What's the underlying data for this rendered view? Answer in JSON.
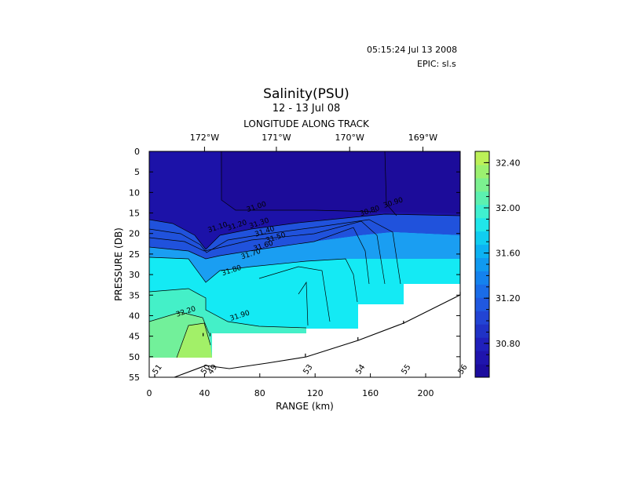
{
  "header": {
    "timestamp": "05:15:24 Jul 13 2008",
    "epic": "EPIC:  sl.s"
  },
  "chart_data": {
    "type": "heatmap",
    "title": "Salinity(PSU)",
    "subtitle": "12 - 13 Jul 08",
    "top_axis_label": "LONGITUDE ALONG TRACK",
    "top_ticks": [
      {
        "label": "172°W",
        "range_km": 40
      },
      {
        "label": "171°W",
        "range_km": 92
      },
      {
        "label": "170°W",
        "range_km": 145
      },
      {
        "label": "169°W",
        "range_km": 198
      }
    ],
    "xlabel": "RANGE (km)",
    "ylabel": "PRESSURE (DB)",
    "xlim": [
      0,
      225
    ],
    "ylim": [
      0,
      55
    ],
    "x_ticks": [
      0,
      40,
      80,
      120,
      160,
      200
    ],
    "y_ticks": [
      0,
      5,
      10,
      15,
      20,
      25,
      30,
      35,
      40,
      45,
      50,
      55
    ],
    "colorbar": {
      "min": 30.5,
      "max": 32.5,
      "tick_labels": [
        "32.40",
        "32.00",
        "31.60",
        "31.20",
        "30.80"
      ],
      "tick_values": [
        32.4,
        32.0,
        31.6,
        31.2,
        30.8
      ],
      "colors": [
        "#1c0c9e",
        "#1f14ad",
        "#2020bb",
        "#2032c6",
        "#2244d4",
        "#2058e0",
        "#1a6ce8",
        "#1482ee",
        "#109af0",
        "#0cb2f2",
        "#10cdf0",
        "#20e6ea",
        "#40f0d0",
        "#5cf0b0",
        "#7cf090",
        "#9cf070",
        "#bcf058"
      ]
    },
    "stations": [
      {
        "label": "51",
        "range_km": 4,
        "bottom_db": 55
      },
      {
        "label": "50",
        "range_km": 39,
        "bottom_db": 45
      },
      {
        "label": "49",
        "range_km": 44,
        "bottom_db": 45
      },
      {
        "label": "53",
        "range_km": 113,
        "bottom_db": 50
      },
      {
        "label": "54",
        "range_km": 151,
        "bottom_db": 46
      },
      {
        "label": "55",
        "range_km": 184,
        "bottom_db": 42
      },
      {
        "label": "56",
        "range_km": 225,
        "bottom_db": 35
      }
    ],
    "contour_labels": [
      {
        "text": "31.00",
        "x_km": 78,
        "y_db": 14
      },
      {
        "text": "31.10",
        "x_km": 50,
        "y_db": 19
      },
      {
        "text": "31.20",
        "x_km": 64,
        "y_db": 18.5
      },
      {
        "text": "31.30",
        "x_km": 80,
        "y_db": 18
      },
      {
        "text": "31.40",
        "x_km": 84,
        "y_db": 20
      },
      {
        "text": "31.50",
        "x_km": 92,
        "y_db": 21.5
      },
      {
        "text": "31.60",
        "x_km": 83,
        "y_db": 23.5
      },
      {
        "text": "31.70",
        "x_km": 74,
        "y_db": 25.5
      },
      {
        "text": "31.80",
        "x_km": 60,
        "y_db": 29.5
      },
      {
        "text": "31.90",
        "x_km": 66,
        "y_db": 40.5
      },
      {
        "text": "32.20",
        "x_km": 27,
        "y_db": 39.5
      },
      {
        "text": "30.90",
        "x_km": 177,
        "y_db": 13
      },
      {
        "text": "30.80",
        "x_km": 160,
        "y_db": 15
      }
    ]
  }
}
